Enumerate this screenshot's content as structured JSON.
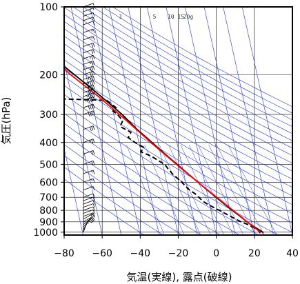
{
  "chart_data": {
    "type": "line",
    "title": "",
    "xlabel": "気温(実線), 露点(破線)",
    "ylabel": "気圧(hPa)",
    "xlim": [
      -80,
      40
    ],
    "ylim": [
      1030,
      100
    ],
    "y_scale": "log",
    "x_ticks": [
      -80,
      -60,
      -40,
      -20,
      0,
      20,
      40
    ],
    "x_tick_labels": [
      "−80",
      "−60",
      "−40",
      "−20",
      "0",
      "20",
      "40"
    ],
    "y_ticks": [
      100,
      200,
      300,
      400,
      500,
      600,
      700,
      800,
      900,
      1000
    ],
    "y_tick_labels": [
      "100",
      "200",
      "300",
      "400",
      "500",
      "600",
      "700",
      "800",
      "900",
      "1000"
    ],
    "mixing_ratio_labels": [
      "1",
      "5",
      "10",
      "15",
      "20g"
    ],
    "colors": {
      "temperature": "#000000",
      "dewpoint": "#000000",
      "parcel": "#ff0000",
      "reference_lines": "#2233dd",
      "grid": "#000000"
    },
    "series": [
      {
        "style": "solid",
        "color": "#000000",
        "pressure": [
          1012,
          1000,
          975,
          950,
          925,
          900,
          850,
          800,
          750,
          700,
          650,
          600,
          550,
          500,
          450,
          400,
          350,
          300,
          250,
          220,
          200,
          180,
          160,
          150,
          140,
          130,
          120,
          110,
          100
        ],
        "values": [
          24.6,
          24.8,
          23.0,
          21.2,
          19.4,
          17.6,
          14.6,
          11.2,
          7.8,
          4.2,
          0.4,
          -3.6,
          -7.8,
          -12.4,
          -17.6,
          -23.0,
          -29.4,
          -35.6,
          -44.5,
          -51.0,
          -56.0,
          -61.5,
          -66.5,
          -68.0,
          -69.5,
          -70.0,
          -71.0,
          -71.5,
          -72.0
        ]
      },
      {
        "style": "dashed",
        "color": "#000000",
        "pressure": [
          1012,
          1000,
          975,
          950,
          925,
          900,
          875,
          850,
          825,
          800,
          775,
          750,
          725,
          700,
          675,
          650,
          625,
          600,
          575,
          550,
          525,
          500,
          480,
          460,
          440,
          420,
          400,
          380,
          360,
          340,
          320,
          300,
          290,
          280,
          270,
          260,
          255
        ],
        "values": [
          23.0,
          23.2,
          22.4,
          20.0,
          17.8,
          14.6,
          12.0,
          9.6,
          7.0,
          4.4,
          1.6,
          -1.2,
          -3.4,
          -4.8,
          -6.4,
          -8.8,
          -10.6,
          -12.0,
          -14.0,
          -16.0,
          -17.6,
          -19.0,
          -22.0,
          -25.0,
          -30.0,
          -28.0,
          -32.0,
          -35.0,
          -33.0,
          -38.0,
          -36.0,
          -38.0,
          -40.0,
          -38.0,
          -40.0,
          -42.0,
          -72.0
        ]
      },
      {
        "style": "solid",
        "color": "#ff0000",
        "pressure": [
          1000,
          950,
          900,
          850,
          800,
          750,
          700,
          650,
          600,
          550,
          500,
          450,
          400,
          350,
          300,
          250,
          200,
          150,
          130
        ],
        "values": [
          23.6,
          20.6,
          17.8,
          14.8,
          11.6,
          8.2,
          4.6,
          0.6,
          -3.6,
          -8.0,
          -12.8,
          -18.0,
          -23.6,
          -29.8,
          -37.0,
          -46.0,
          -58.0,
          -72.0,
          -77.0
        ]
      }
    ],
    "wind_barbs": {
      "pressure": [
        1000,
        975,
        950,
        925,
        900,
        875,
        850,
        825,
        800,
        775,
        750,
        725,
        700,
        650,
        600,
        550,
        500,
        450,
        400,
        350,
        300,
        280,
        260,
        250,
        240,
        230,
        220,
        210,
        200,
        190,
        180,
        170,
        160,
        150,
        140,
        130,
        120,
        115,
        110,
        105,
        100
      ],
      "speed_kt": [
        5,
        10,
        10,
        15,
        15,
        15,
        15,
        10,
        10,
        10,
        10,
        10,
        10,
        10,
        15,
        15,
        20,
        20,
        25,
        30,
        40,
        40,
        45,
        45,
        40,
        40,
        35,
        35,
        30,
        30,
        25,
        25,
        20,
        20,
        15,
        15,
        10,
        10,
        10,
        5,
        5
      ],
      "dir_deg": [
        200,
        210,
        220,
        230,
        240,
        240,
        250,
        250,
        250,
        250,
        250,
        250,
        250,
        250,
        250,
        250,
        250,
        250,
        250,
        250,
        250,
        250,
        250,
        250,
        250,
        250,
        250,
        250,
        250,
        250,
        250,
        250,
        250,
        250,
        250,
        250,
        250,
        250,
        250,
        250,
        250
      ]
    }
  }
}
